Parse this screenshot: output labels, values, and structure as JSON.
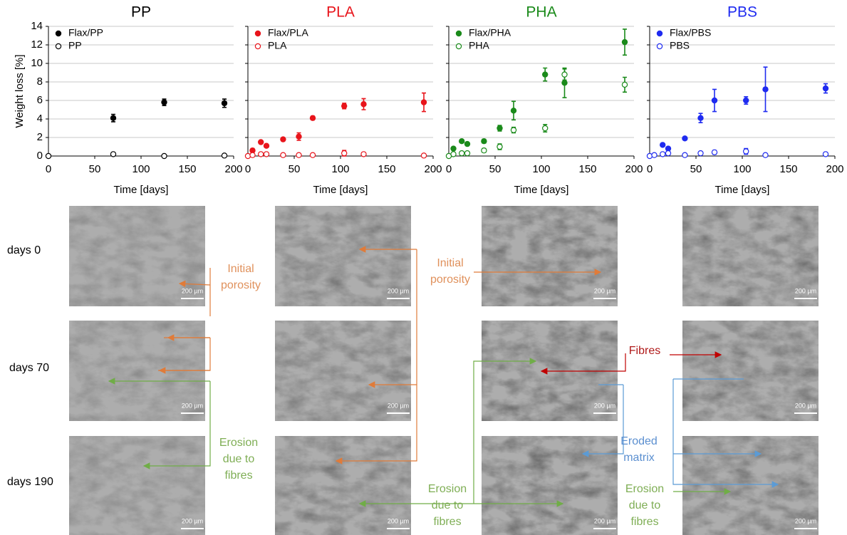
{
  "chart_data": [
    {
      "type": "scatter",
      "title": "PP",
      "title_color": "#000000",
      "xlabel": "Time [days]",
      "ylabel": "Weight loss [%]",
      "xlim": [
        0,
        200
      ],
      "xticks": [
        0,
        50,
        100,
        150,
        200
      ],
      "ylim": [
        0,
        14
      ],
      "yticks": [
        0,
        2,
        4,
        6,
        8,
        10,
        12,
        14
      ],
      "show_ytick_labels": true,
      "grid": true,
      "legend": "upper left",
      "series": [
        {
          "name": "Flax/PP",
          "color": "#000000",
          "marker": "filled",
          "x": [
            70,
            125,
            190
          ],
          "values": [
            4.1,
            5.8,
            5.7
          ],
          "errors": [
            0.4,
            0.35,
            0.45
          ]
        },
        {
          "name": "PP",
          "color": "#000000",
          "marker": "open",
          "x": [
            0,
            70,
            125,
            190
          ],
          "values": [
            0,
            0.2,
            0,
            0.05
          ],
          "errors": [
            0,
            0.1,
            0,
            0.1
          ]
        }
      ]
    },
    {
      "type": "scatter",
      "title": "PLA",
      "title_color": "#e8141b",
      "xlabel": "Time [days]",
      "xlim": [
        0,
        200
      ],
      "xticks": [
        0,
        50,
        100,
        150,
        200
      ],
      "ylim": [
        0,
        14
      ],
      "yticks": [
        0,
        2,
        4,
        6,
        8,
        10,
        12,
        14
      ],
      "show_ytick_labels": false,
      "grid": true,
      "legend": "upper left",
      "series": [
        {
          "name": "Flax/PLA",
          "color": "#e8141b",
          "marker": "filled",
          "x": [
            5,
            14,
            20,
            38,
            55,
            70,
            104,
            125,
            190
          ],
          "values": [
            0.6,
            1.5,
            1.1,
            1.8,
            2.1,
            4.1,
            5.4,
            5.6,
            5.8
          ],
          "errors": [
            0.2,
            0.1,
            0.1,
            0.15,
            0.4,
            0.2,
            0.3,
            0.6,
            1.0
          ]
        },
        {
          "name": "PLA",
          "color": "#e8141b",
          "marker": "open",
          "x": [
            0,
            5,
            14,
            20,
            38,
            55,
            70,
            104,
            125,
            190
          ],
          "values": [
            0,
            0.1,
            0.2,
            0.2,
            0.1,
            0.1,
            0.1,
            0.3,
            0.2,
            0.05
          ],
          "errors": [
            0,
            0,
            0,
            0,
            0,
            0,
            0,
            0.3,
            0.1,
            0
          ]
        }
      ]
    },
    {
      "type": "scatter",
      "title": "PHA",
      "title_color": "#1a8a1a",
      "xlabel": "Time [days]",
      "xlim": [
        0,
        200
      ],
      "xticks": [
        0,
        50,
        100,
        150,
        200
      ],
      "ylim": [
        0,
        14
      ],
      "yticks": [
        0,
        2,
        4,
        6,
        8,
        10,
        12,
        14
      ],
      "show_ytick_labels": false,
      "grid": true,
      "legend": "upper left",
      "series": [
        {
          "name": "Flax/PHA",
          "color": "#1a8a1a",
          "marker": "filled",
          "x": [
            5,
            14,
            20,
            38,
            55,
            70,
            104,
            125,
            190
          ],
          "values": [
            0.8,
            1.6,
            1.3,
            1.6,
            3.0,
            4.9,
            8.8,
            7.9,
            12.3
          ],
          "errors": [
            0.1,
            0.1,
            0.1,
            0.2,
            0.3,
            1.0,
            0.7,
            1.6,
            1.4
          ]
        },
        {
          "name": "PHA",
          "color": "#1a8a1a",
          "marker": "open",
          "x": [
            0,
            5,
            14,
            20,
            38,
            55,
            70,
            104,
            125,
            190
          ],
          "values": [
            0,
            0.2,
            0.3,
            0.3,
            0.6,
            1.0,
            2.8,
            3.0,
            8.8,
            7.7
          ],
          "errors": [
            0,
            0,
            0,
            0,
            0.2,
            0.3,
            0.3,
            0.4,
            0.6,
            0.8
          ]
        }
      ]
    },
    {
      "type": "scatter",
      "title": "PBS",
      "title_color": "#1f2bf0",
      "xlabel": "Time [days]",
      "xlim": [
        0,
        200
      ],
      "xticks": [
        0,
        50,
        100,
        150,
        200
      ],
      "ylim": [
        0,
        14
      ],
      "yticks": [
        0,
        2,
        4,
        6,
        8,
        10,
        12,
        14
      ],
      "show_ytick_labels": false,
      "grid": true,
      "legend": "upper left",
      "series": [
        {
          "name": "Flax/PBS",
          "color": "#1f2bf0",
          "marker": "filled",
          "x": [
            14,
            20,
            38,
            55,
            70,
            104,
            125,
            190
          ],
          "values": [
            1.2,
            0.8,
            1.9,
            4.1,
            6.0,
            6.0,
            7.2,
            7.3
          ],
          "errors": [
            0.1,
            0.1,
            0.1,
            0.5,
            1.2,
            0.4,
            2.4,
            0.5
          ]
        },
        {
          "name": "PBS",
          "color": "#1f2bf0",
          "marker": "open",
          "x": [
            0,
            5,
            14,
            20,
            38,
            55,
            70,
            104,
            125,
            190
          ],
          "values": [
            0,
            0.1,
            0.2,
            0.3,
            0.1,
            0.3,
            0.4,
            0.5,
            0.1,
            0.2
          ],
          "errors": [
            0,
            0,
            0,
            0,
            0,
            0,
            0.2,
            0.3,
            0,
            0
          ]
        }
      ]
    }
  ],
  "figure": {
    "row_labels": [
      "days 0",
      "days 70",
      "days 190"
    ],
    "scale_bar": "200 µm",
    "annotations": [
      {
        "lines": [
          "Initial",
          "porosity"
        ],
        "color": "#e0915c"
      },
      {
        "lines": [
          "Initial",
          "porosity"
        ],
        "color": "#e0915c"
      },
      {
        "lines": [
          "Erosion",
          "due to",
          "fibres"
        ],
        "color": "#7fae55"
      },
      {
        "lines": [
          "Erosion",
          "due to",
          "fibres"
        ],
        "color": "#7fae55"
      },
      {
        "lines": [
          "Erosion",
          "due to",
          "fibres"
        ],
        "color": "#7fae55"
      },
      {
        "lines": [
          "Fibres"
        ],
        "color": "#b01a1a"
      },
      {
        "lines": [
          "Eroded",
          "matrix"
        ],
        "color": "#5b8fd0"
      }
    ]
  }
}
